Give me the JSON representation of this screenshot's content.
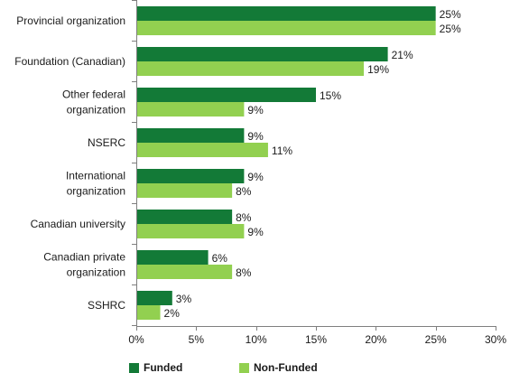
{
  "chart_data": {
    "type": "bar",
    "orientation": "horizontal",
    "title": "",
    "xlabel": "",
    "ylabel": "",
    "xlim": [
      0,
      30
    ],
    "x_ticks": [
      "0%",
      "5%",
      "10%",
      "15%",
      "20%",
      "25%",
      "30%"
    ],
    "x_tick_values": [
      0,
      5,
      10,
      15,
      20,
      25,
      30
    ],
    "value_suffix": "%",
    "grid": false,
    "legend_position": "bottom",
    "categories": [
      [
        "Provincial organization"
      ],
      [
        "Foundation (Canadian)"
      ],
      [
        "Other federal",
        "organization"
      ],
      [
        "NSERC"
      ],
      [
        "International",
        "organization"
      ],
      [
        "Canadian university"
      ],
      [
        "Canadian private",
        "organization"
      ],
      [
        "SSHRC"
      ]
    ],
    "series": [
      {
        "name": "Funded",
        "color": "#137a37",
        "values": [
          25,
          21,
          15,
          9,
          9,
          8,
          6,
          3
        ]
      },
      {
        "name": "Non-Funded",
        "color": "#92d050",
        "values": [
          25,
          19,
          9,
          11,
          8,
          9,
          8,
          2
        ]
      }
    ]
  }
}
